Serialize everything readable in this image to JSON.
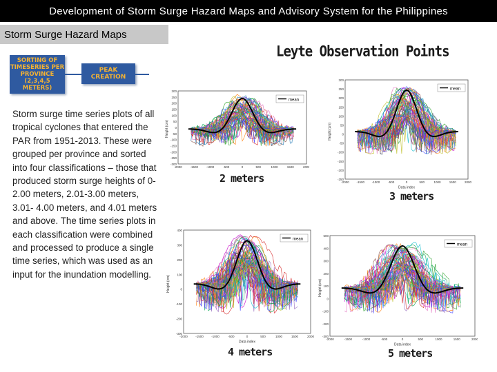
{
  "header": {
    "title": "Development of Storm Surge Hazard Maps and Advisory System for the Philippines"
  },
  "section": {
    "label": "Storm Surge Hazard Maps"
  },
  "flow": {
    "step1": "SORTING OF\nTIMESERIES PER\nPROVINCE\n(2,3,4,5 METERS)",
    "step2": "PEAK CREATION"
  },
  "description": "Storm surge time series plots of all tropical cyclones that entered the PAR from 1951-2013. These were grouped per province and sorted into four classifications – those that produced storm surge heights of 0-2.00 meters, 2.01-3.00 meters, 3.01- 4.00 meters, and 4.01 meters and above. The time series plots in each classification were combined and processed to produce a single time series, which was used as an input for the inundation modelling.",
  "figure": {
    "title": "Leyte Observation Points"
  },
  "plots": [
    {
      "caption": "2 meters",
      "legend": "mean",
      "xlabel": "",
      "ylabel": "Height (cm)",
      "xticks": [
        "-2000",
        "-1500",
        "-1000",
        "-500",
        "0",
        "500",
        "1000",
        "1500",
        "2000"
      ],
      "yticks": [
        "300",
        "250",
        "200",
        "150",
        "100",
        "50",
        "0",
        "-50",
        "-100",
        "-150",
        "-200",
        "-250",
        "-300"
      ]
    },
    {
      "caption": "3 meters",
      "legend": "mean",
      "xlabel": "Data index",
      "ylabel": "Height (cm)",
      "xticks": [
        "-2000",
        "-1500",
        "-1000",
        "-500",
        "0",
        "500",
        "1000",
        "1500",
        "2000"
      ],
      "yticks": [
        "300",
        "250",
        "200",
        "150",
        "100",
        "50",
        "0",
        "-50",
        "-100",
        "-150",
        "-200",
        "-250"
      ]
    },
    {
      "caption": "4 meters",
      "legend": "mean",
      "xlabel": "Data index",
      "ylabel": "Height (cm)",
      "xticks": [
        "-2000",
        "-1500",
        "-1000",
        "-500",
        "0",
        "500",
        "1000",
        "1500",
        "2000"
      ],
      "yticks": [
        "400",
        "300",
        "200",
        "100",
        "0",
        "-100",
        "-200",
        "-300"
      ]
    },
    {
      "caption": "5 meters",
      "legend": "mean",
      "xlabel": "Data index",
      "ylabel": "Height (cm)",
      "xticks": [
        "-2000",
        "-1500",
        "-1000",
        "-500",
        "0",
        "500",
        "1000",
        "1500",
        "2000"
      ],
      "yticks": [
        "500",
        "400",
        "300",
        "200",
        "100",
        "0",
        "-100",
        "-200",
        "-300"
      ]
    }
  ],
  "colors": {
    "title_bg": "#000000",
    "tab_bg": "#c8c8c8",
    "box_bg": "#2f5aa0",
    "box_text": "#f3b233"
  }
}
